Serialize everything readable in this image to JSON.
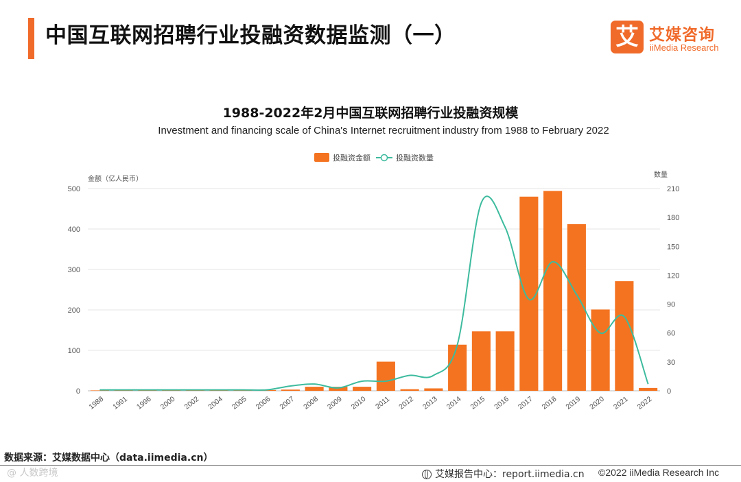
{
  "header": {
    "title": "中国互联网招聘行业投融资数据监测（一）",
    "logo_mark": "艾",
    "logo_cn": "艾媒咨询",
    "logo_en": "iiMedia Research"
  },
  "colors": {
    "accent": "#f06a2a",
    "bar": "#f47320",
    "line": "#3dbb9e",
    "grid": "#e6e6e6"
  },
  "chart_data": {
    "type": "bar+line",
    "title": "1988-2022年2月中国互联网招聘行业投融资规模",
    "subtitle": "Investment and financing scale of China's Internet recruitment industry from 1988 to February 2022",
    "legend": {
      "position": "top-center",
      "bar_label": "投融资金额",
      "line_label": "投融资数量"
    },
    "ylabel_left": "金额（亿人民币）",
    "ylabel_right": "数量",
    "ylim_left": [
      0,
      500
    ],
    "yticks_left": [
      0,
      100,
      200,
      300,
      400,
      500
    ],
    "ylim_right": [
      0,
      210
    ],
    "yticks_right": [
      0,
      30,
      60,
      90,
      120,
      150,
      180,
      210
    ],
    "categories": [
      "1988",
      "1991",
      "1996",
      "2000",
      "2002",
      "2004",
      "2005",
      "2006",
      "2007",
      "2008",
      "2009",
      "2010",
      "2011",
      "2012",
      "2013",
      "2014",
      "2015",
      "2016",
      "2017",
      "2018",
      "2019",
      "2020",
      "2021",
      "2022"
    ],
    "series": [
      {
        "name": "投融资金额",
        "axis": "left",
        "kind": "bar",
        "values": [
          1,
          1,
          1,
          1,
          1,
          1,
          1,
          2,
          3,
          10,
          10,
          10,
          72,
          4,
          6,
          114,
          147,
          147,
          480,
          494,
          412,
          201,
          271,
          7
        ]
      },
      {
        "name": "投融资数量",
        "axis": "right",
        "kind": "line",
        "values": [
          1,
          1,
          1,
          1,
          1,
          1,
          1,
          1,
          5,
          7,
          3,
          10,
          10,
          16,
          16,
          48,
          195,
          170,
          95,
          134,
          100,
          60,
          77,
          7
        ]
      }
    ]
  },
  "footer": {
    "source": "数据来源：艾媒数据中心（data.iimedia.cn）",
    "watermark": "@ 人数跨境",
    "report": "艾媒报告中心：report.iimedia.cn",
    "copyright": "©2022  iiMedia Research  Inc"
  }
}
